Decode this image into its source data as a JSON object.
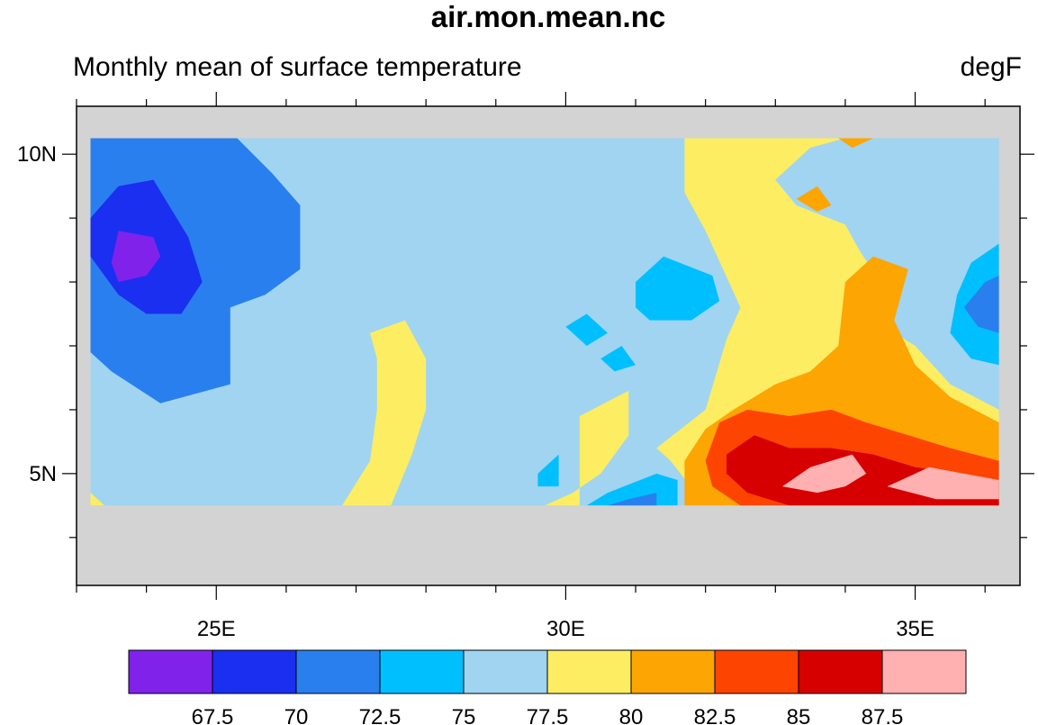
{
  "chart_data": {
    "type": "heatmap",
    "title": "air.mon.mean.nc",
    "subtitle_left": "Monthly mean of surface temperature",
    "subtitle_right": "degF",
    "x_axis": {
      "range": [
        23.0,
        36.5
      ],
      "major_ticks": [
        25,
        30,
        35
      ],
      "tick_labels": [
        "25E",
        "30E",
        "35E"
      ],
      "minor_step": 1
    },
    "y_axis": {
      "range": [
        3.25,
        10.75
      ],
      "major_ticks": [
        5,
        10
      ],
      "tick_labels": [
        "5N",
        "10N"
      ],
      "minor_step": 1
    },
    "data_extent": {
      "lon": [
        23.2,
        36.2
      ],
      "lat": [
        4.5,
        10.25
      ]
    },
    "missing_color": "#d3d3d3",
    "levels": [
      67.5,
      70,
      72.5,
      75,
      77.5,
      80,
      82.5,
      85,
      87.5
    ],
    "level_labels": [
      "67.5",
      "70",
      "72.5",
      "75",
      "77.5",
      "80",
      "82.5",
      "85",
      "87.5"
    ],
    "colors": [
      "#8122eb",
      "#1a2ff0",
      "#2a7fef",
      "#00bfff",
      "#a1d4f0",
      "#fced63",
      "#fca503",
      "#fd4400",
      "#d60000",
      "#ffb0b0"
    ],
    "regions": [
      {
        "level": 2,
        "points": [
          [
            23.2,
            10.25
          ],
          [
            25.3,
            10.25
          ],
          [
            25.8,
            9.7
          ],
          [
            26.2,
            9.2
          ],
          [
            26.2,
            8.2
          ],
          [
            25.7,
            7.8
          ],
          [
            25.2,
            7.6
          ],
          [
            25.2,
            7.0
          ],
          [
            25.2,
            6.4
          ],
          [
            24.2,
            6.1
          ],
          [
            23.5,
            6.6
          ],
          [
            23.2,
            6.9
          ]
        ]
      },
      {
        "level": 1,
        "points": [
          [
            23.2,
            9.0
          ],
          [
            23.6,
            9.5
          ],
          [
            24.1,
            9.6
          ],
          [
            24.6,
            8.7
          ],
          [
            24.8,
            8.0
          ],
          [
            24.5,
            7.5
          ],
          [
            24.0,
            7.5
          ],
          [
            23.6,
            7.8
          ],
          [
            23.2,
            8.4
          ]
        ]
      },
      {
        "level": 0,
        "points": [
          [
            23.6,
            8.8
          ],
          [
            24.1,
            8.7
          ],
          [
            24.2,
            8.4
          ],
          [
            24.0,
            8.1
          ],
          [
            23.6,
            8.0
          ],
          [
            23.5,
            8.3
          ]
        ]
      },
      {
        "level": 5,
        "points": [
          [
            27.2,
            7.2
          ],
          [
            27.7,
            7.4
          ],
          [
            28.0,
            6.8
          ],
          [
            28.0,
            6.0
          ],
          [
            27.8,
            5.3
          ],
          [
            27.5,
            4.5
          ],
          [
            26.8,
            4.5
          ],
          [
            27.2,
            5.2
          ],
          [
            27.3,
            6.0
          ],
          [
            27.3,
            6.8
          ]
        ]
      },
      {
        "level": 3,
        "points": [
          [
            31.0,
            8.0
          ],
          [
            31.4,
            8.4
          ],
          [
            32.1,
            8.1
          ],
          [
            32.2,
            7.7
          ],
          [
            31.8,
            7.4
          ],
          [
            31.2,
            7.4
          ],
          [
            31.0,
            7.6
          ]
        ]
      },
      {
        "level": 3,
        "points": [
          [
            30.0,
            7.3
          ],
          [
            30.3,
            7.5
          ],
          [
            30.6,
            7.2
          ],
          [
            30.3,
            7.0
          ]
        ]
      },
      {
        "level": 3,
        "points": [
          [
            30.5,
            6.8
          ],
          [
            30.8,
            7.0
          ],
          [
            31.0,
            6.7
          ],
          [
            30.7,
            6.6
          ]
        ]
      },
      {
        "level": 3,
        "points": [
          [
            29.6,
            5.0
          ],
          [
            29.9,
            5.3
          ],
          [
            29.9,
            4.8
          ],
          [
            29.6,
            4.8
          ]
        ]
      },
      {
        "level": 5,
        "points": [
          [
            30.2,
            5.9
          ],
          [
            30.9,
            6.3
          ],
          [
            30.9,
            5.6
          ],
          [
            30.5,
            5.0
          ],
          [
            30.1,
            4.7
          ],
          [
            29.7,
            4.5
          ],
          [
            30.2,
            4.5
          ],
          [
            30.2,
            5.3
          ]
        ]
      },
      {
        "level": 5,
        "points": [
          [
            31.7,
            10.25
          ],
          [
            34.0,
            10.25
          ],
          [
            33.5,
            10.1
          ],
          [
            33.0,
            9.6
          ],
          [
            33.3,
            9.2
          ],
          [
            34.0,
            8.9
          ],
          [
            34.2,
            8.5
          ],
          [
            34.5,
            8.0
          ],
          [
            34.4,
            7.4
          ],
          [
            35.0,
            7.0
          ],
          [
            35.5,
            6.4
          ],
          [
            36.2,
            6.0
          ],
          [
            36.2,
            4.5
          ],
          [
            32.0,
            4.5
          ],
          [
            31.5,
            5.2
          ],
          [
            31.3,
            5.4
          ],
          [
            32.0,
            6.0
          ],
          [
            32.3,
            7.1
          ],
          [
            32.5,
            7.6
          ],
          [
            32.0,
            8.8
          ],
          [
            31.7,
            9.4
          ]
        ]
      },
      {
        "level": 4,
        "points": [
          [
            33.0,
            9.6
          ],
          [
            33.5,
            10.1
          ],
          [
            34.0,
            10.25
          ],
          [
            36.2,
            10.25
          ],
          [
            36.2,
            9.5
          ],
          [
            35.6,
            9.2
          ],
          [
            35.0,
            9.0
          ],
          [
            34.5,
            8.0
          ],
          [
            34.2,
            8.5
          ],
          [
            34.0,
            8.9
          ],
          [
            33.3,
            9.2
          ]
        ]
      },
      {
        "level": 6,
        "points": [
          [
            33.9,
            10.25
          ],
          [
            34.4,
            10.25
          ],
          [
            34.1,
            10.1
          ]
        ]
      },
      {
        "level": 6,
        "points": [
          [
            33.3,
            9.3
          ],
          [
            33.6,
            9.5
          ],
          [
            33.8,
            9.2
          ],
          [
            33.6,
            9.1
          ]
        ]
      },
      {
        "level": 6,
        "points": [
          [
            33.0,
            6.4
          ],
          [
            33.5,
            6.6
          ],
          [
            33.9,
            7.0
          ],
          [
            34.0,
            8.0
          ],
          [
            34.4,
            8.4
          ],
          [
            34.9,
            8.2
          ],
          [
            34.7,
            7.4
          ],
          [
            35.0,
            6.7
          ],
          [
            35.5,
            6.2
          ],
          [
            36.2,
            5.8
          ],
          [
            36.2,
            4.5
          ],
          [
            31.7,
            4.5
          ],
          [
            31.7,
            5.2
          ],
          [
            32.0,
            5.7
          ],
          [
            32.4,
            6.0
          ]
        ]
      },
      {
        "level": 7,
        "points": [
          [
            32.2,
            5.8
          ],
          [
            32.6,
            6.0
          ],
          [
            33.2,
            5.9
          ],
          [
            33.8,
            6.0
          ],
          [
            34.3,
            5.8
          ],
          [
            34.9,
            5.6
          ],
          [
            35.5,
            5.4
          ],
          [
            36.2,
            5.2
          ],
          [
            36.2,
            4.5
          ],
          [
            32.5,
            4.5
          ],
          [
            32.1,
            4.8
          ],
          [
            32.0,
            5.2
          ]
        ]
      },
      {
        "level": 8,
        "points": [
          [
            32.3,
            5.3
          ],
          [
            32.7,
            5.6
          ],
          [
            33.2,
            5.4
          ],
          [
            33.8,
            5.4
          ],
          [
            34.4,
            5.3
          ],
          [
            35.0,
            5.1
          ],
          [
            35.6,
            5.0
          ],
          [
            36.2,
            4.9
          ],
          [
            36.2,
            4.5
          ],
          [
            33.2,
            4.5
          ],
          [
            32.6,
            4.7
          ],
          [
            32.3,
            5.0
          ]
        ]
      },
      {
        "level": 9,
        "points": [
          [
            33.1,
            4.8
          ],
          [
            33.5,
            5.1
          ],
          [
            34.1,
            5.3
          ],
          [
            34.3,
            5.0
          ],
          [
            34.0,
            4.8
          ],
          [
            33.6,
            4.7
          ]
        ]
      },
      {
        "level": 9,
        "points": [
          [
            34.6,
            4.8
          ],
          [
            35.2,
            5.1
          ],
          [
            36.2,
            4.9
          ],
          [
            36.2,
            4.6
          ],
          [
            35.3,
            4.6
          ]
        ]
      },
      {
        "level": 3,
        "points": [
          [
            31.0,
            4.5
          ],
          [
            31.6,
            4.5
          ],
          [
            31.6,
            4.9
          ],
          [
            31.3,
            5.0
          ],
          [
            30.6,
            4.7
          ],
          [
            30.3,
            4.5
          ]
        ]
      },
      {
        "level": 2,
        "points": [
          [
            30.6,
            4.5
          ],
          [
            31.3,
            4.5
          ],
          [
            31.3,
            4.7
          ],
          [
            30.9,
            4.6
          ]
        ]
      },
      {
        "level": 3,
        "points": [
          [
            35.5,
            7.2
          ],
          [
            35.6,
            7.8
          ],
          [
            35.8,
            8.3
          ],
          [
            36.2,
            8.6
          ],
          [
            36.2,
            6.7
          ],
          [
            35.8,
            6.8
          ]
        ]
      },
      {
        "level": 2,
        "points": [
          [
            35.7,
            7.6
          ],
          [
            36.0,
            8.0
          ],
          [
            36.2,
            8.1
          ],
          [
            36.2,
            7.2
          ],
          [
            35.9,
            7.3
          ]
        ]
      },
      {
        "level": 5,
        "points": [
          [
            23.2,
            4.5
          ],
          [
            23.4,
            4.5
          ],
          [
            23.2,
            4.7
          ]
        ]
      }
    ]
  }
}
